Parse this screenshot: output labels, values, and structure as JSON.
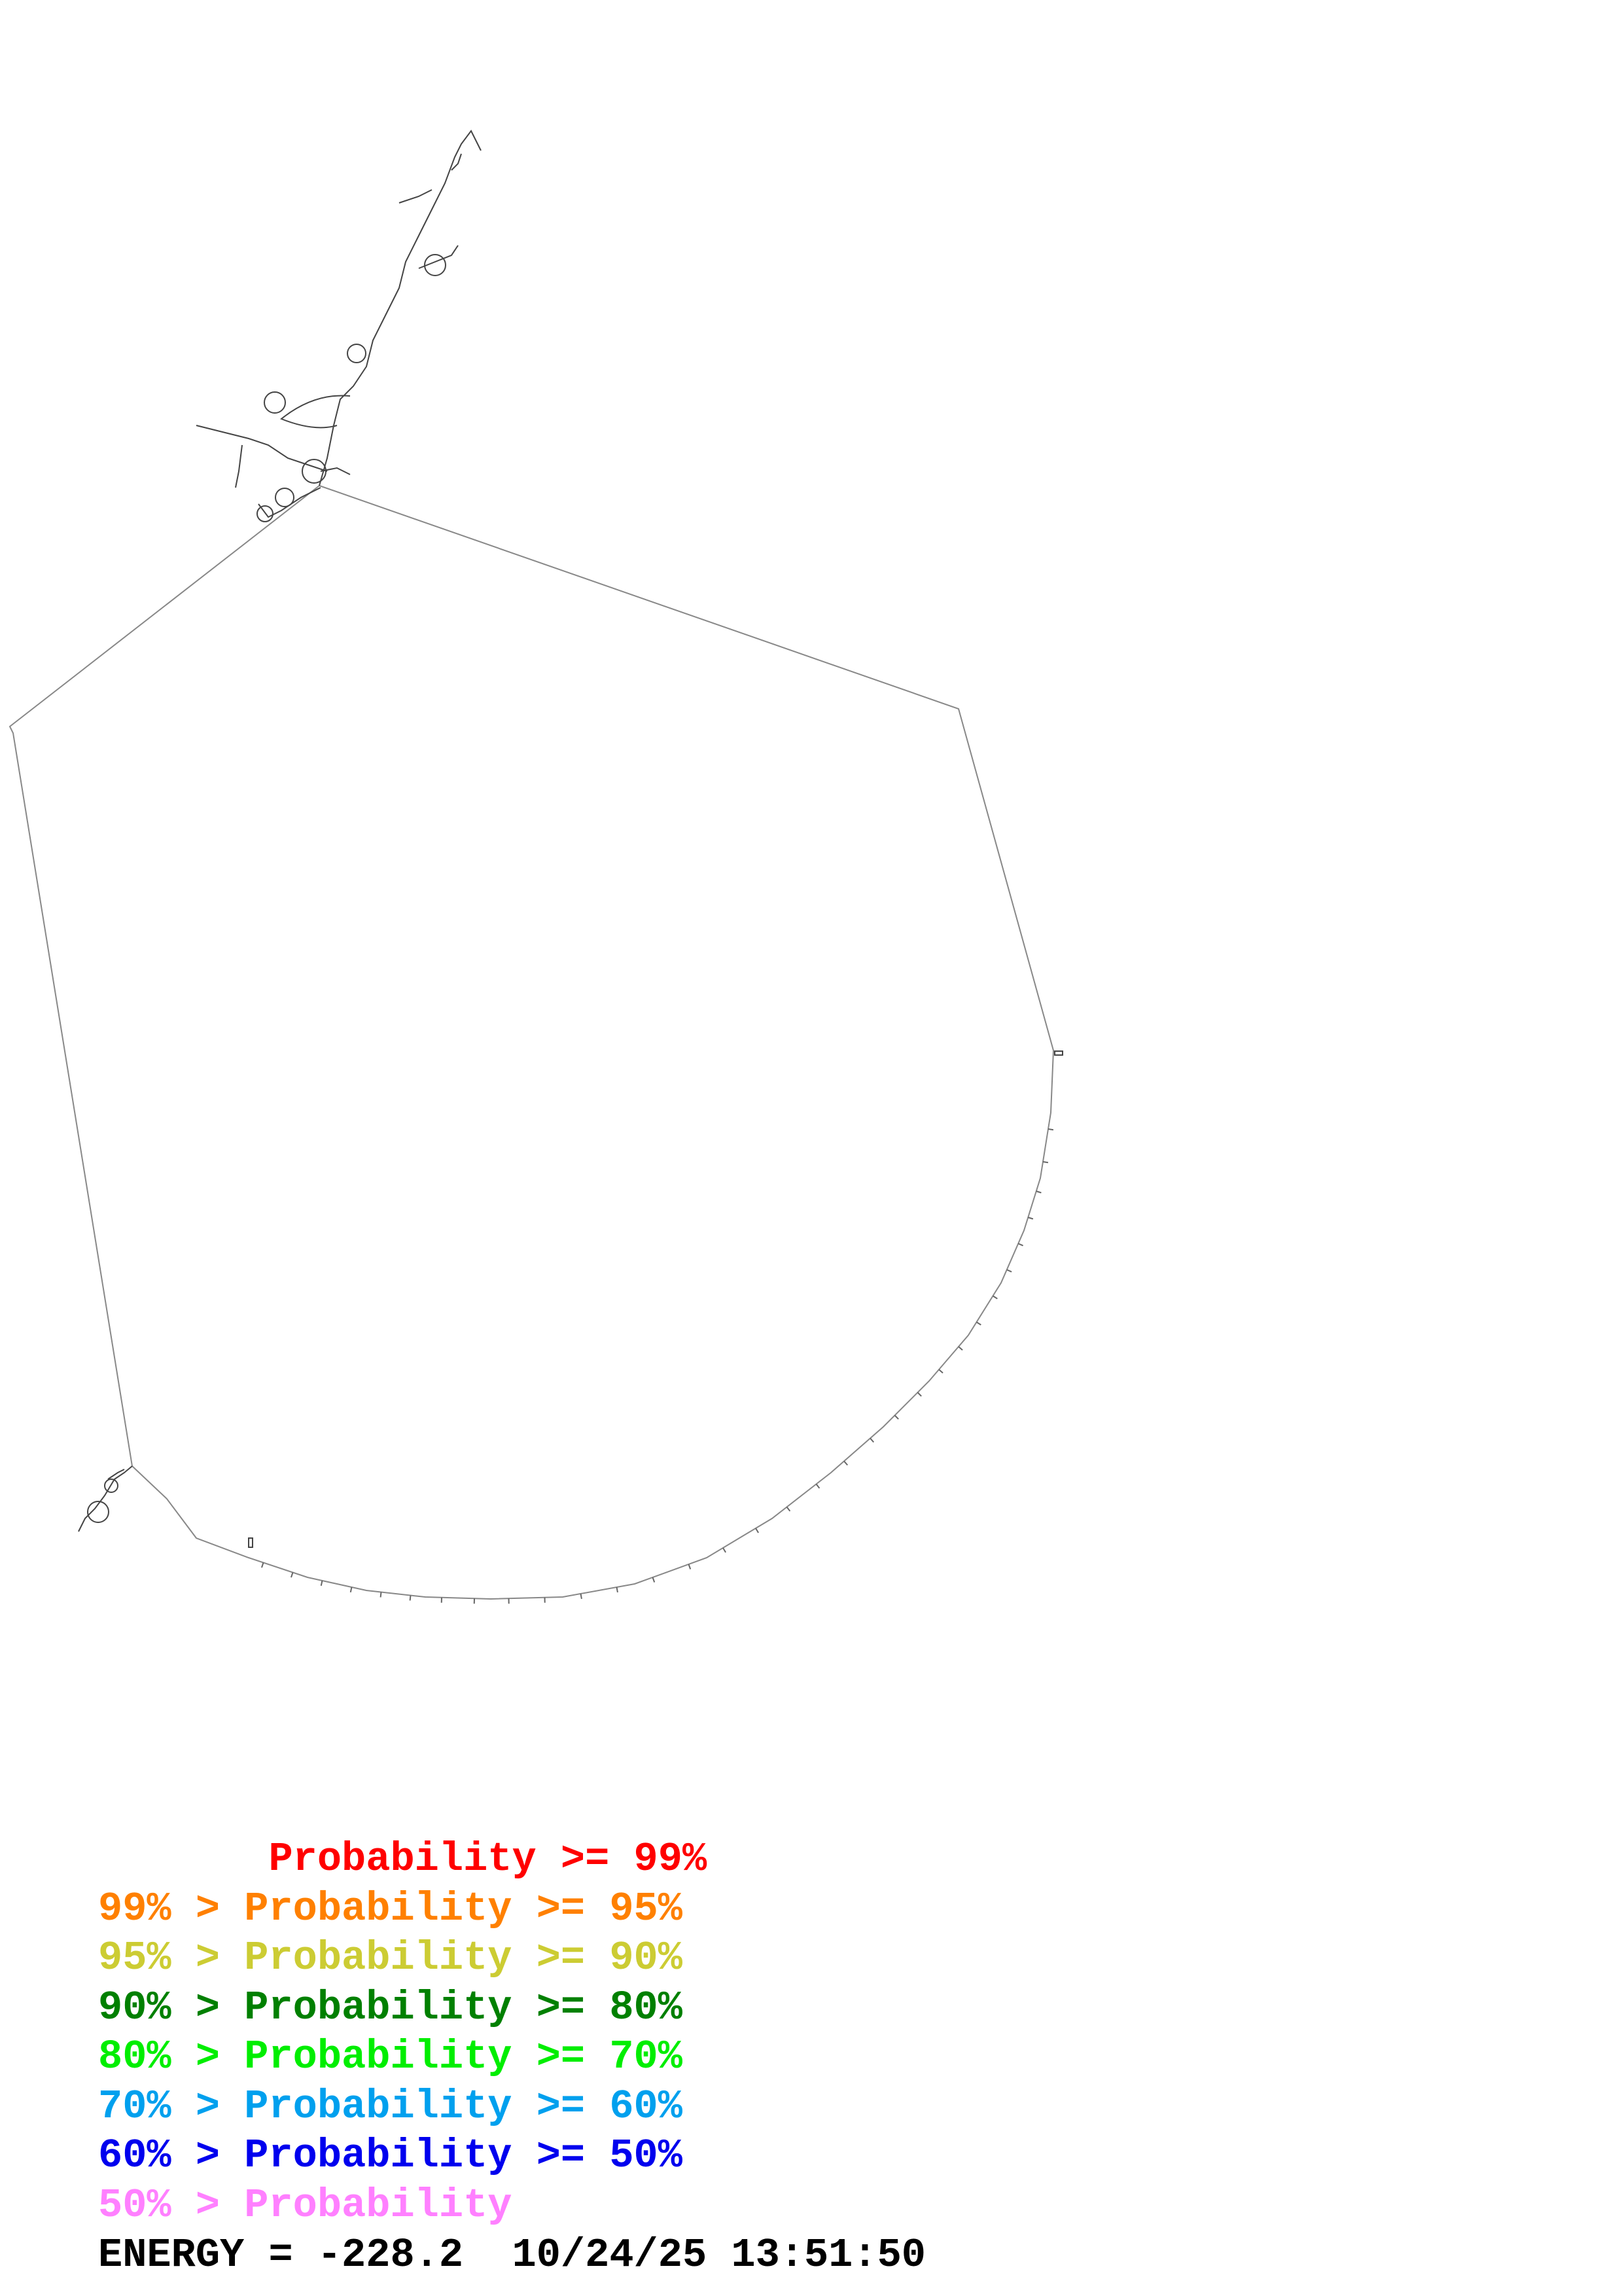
{
  "legend": [
    {
      "text": "       Probability >= 99%",
      "color": "#ff0000"
    },
    {
      "text": "99% > Probability >= 95%",
      "color": "#ff8000"
    },
    {
      "text": "95% > Probability >= 90%",
      "color": "#cccc33"
    },
    {
      "text": "90% > Probability >= 80%",
      "color": "#008000"
    },
    {
      "text": "80% > Probability >= 70%",
      "color": "#00ee00"
    },
    {
      "text": "70% > Probability >= 60%",
      "color": "#00a0ee"
    },
    {
      "text": "60% > Probability >= 50%",
      "color": "#0000ee"
    },
    {
      "text": "50% > Probability",
      "color": "#ff80ff"
    }
  ],
  "footer": {
    "energy_line": "ENERGY = -228.2  10/24/25 13:51:50"
  },
  "colors": {
    "backbone": "#888888",
    "pairs": "#555555"
  }
}
